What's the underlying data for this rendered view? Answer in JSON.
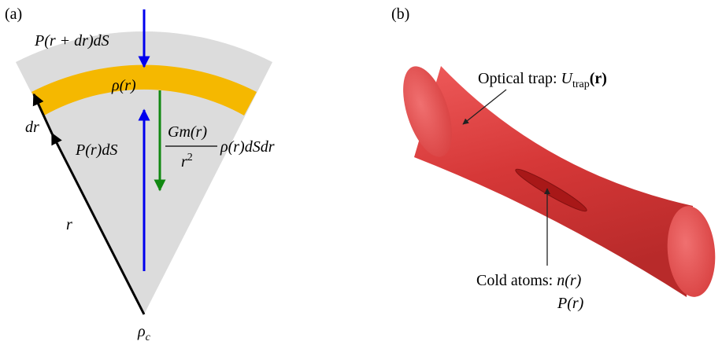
{
  "panel_a": {
    "label": "(a)",
    "pressure_top": "P(r + dr)dS",
    "density": "ρ(r)",
    "dr": "dr",
    "pressure_bottom": "P(r)dS",
    "gravity_numerator": "Gm(r)",
    "gravity_denominator_base": "r",
    "gravity_denominator_exp": "2",
    "gravity_tail": "ρ(r)dSdr",
    "radius": "r",
    "center_density_base": "ρ",
    "center_density_sub": "c"
  },
  "panel_b": {
    "label": "(b)",
    "trap_prefix": "Optical trap: ",
    "trap_symbol": "U",
    "trap_subscript": "trap",
    "trap_arg": "(r)",
    "atoms_prefix": "Cold atoms: ",
    "atoms_symbol": "n(r)",
    "pressure": "P(r)"
  }
}
